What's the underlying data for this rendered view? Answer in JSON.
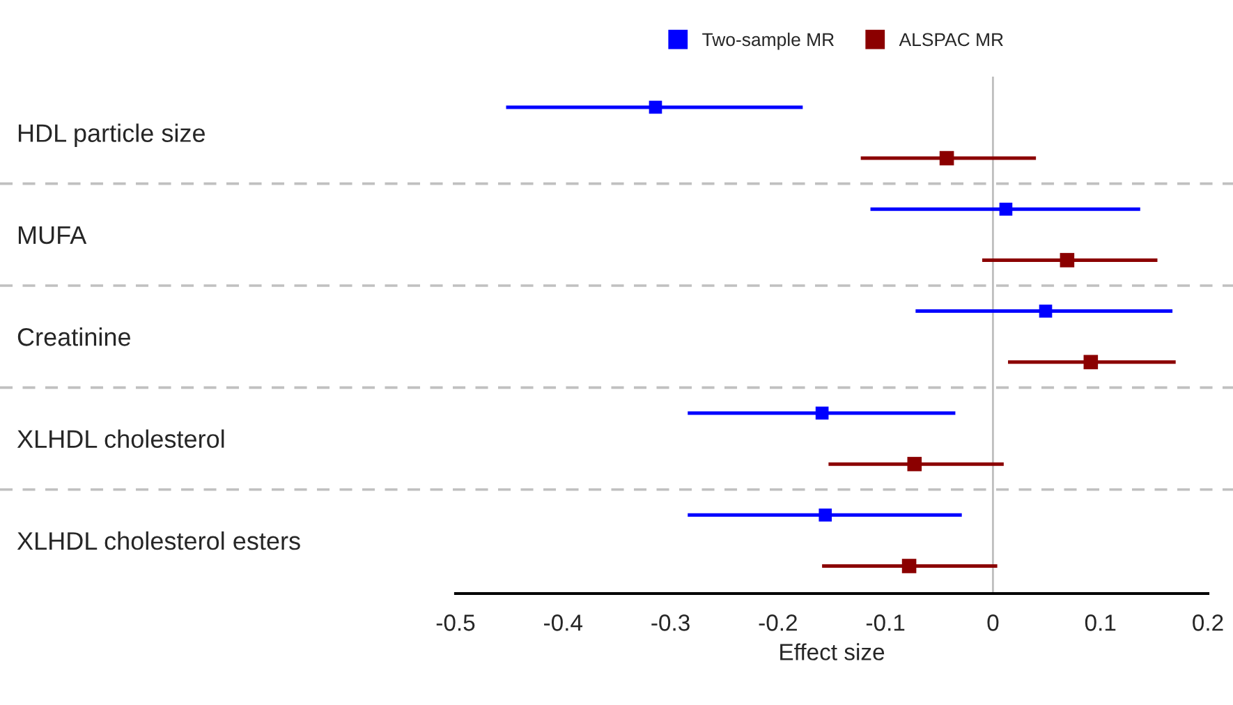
{
  "chart_data": {
    "type": "scatter",
    "orientation": "horizontal",
    "xlabel": "Effect size",
    "categories": [
      "HDL particle size",
      "MUFA",
      "Creatinine",
      "XLHDL cholesterol",
      "XLHDL cholesterol esters"
    ],
    "series": [
      {
        "name": "Two-sample MR",
        "color": "#0000ff",
        "values": [
          -0.314,
          0.012,
          0.049,
          -0.159,
          -0.156
        ],
        "errors": [
          [
            -0.453,
            -0.177
          ],
          [
            -0.114,
            0.137
          ],
          [
            -0.072,
            0.167
          ],
          [
            -0.284,
            -0.035
          ],
          [
            -0.284,
            -0.029
          ]
        ]
      },
      {
        "name": "ALSPAC MR",
        "color": "#8b0000",
        "values": [
          -0.043,
          0.069,
          0.091,
          -0.073,
          -0.078
        ],
        "errors": [
          [
            -0.123,
            0.04
          ],
          [
            -0.01,
            0.153
          ],
          [
            0.014,
            0.17
          ],
          [
            -0.153,
            0.01
          ],
          [
            -0.159,
            0.004
          ]
        ]
      }
    ],
    "xlim": [
      -0.5,
      0.2
    ],
    "xticks": [
      -0.5,
      -0.4,
      -0.3,
      -0.2,
      -0.1,
      0,
      0.1,
      0.2
    ],
    "ref_lines": [
      {
        "axis": "x",
        "value": 0,
        "color": "#bebebe"
      }
    ],
    "marker": "square",
    "legend": "top",
    "grid": false
  }
}
